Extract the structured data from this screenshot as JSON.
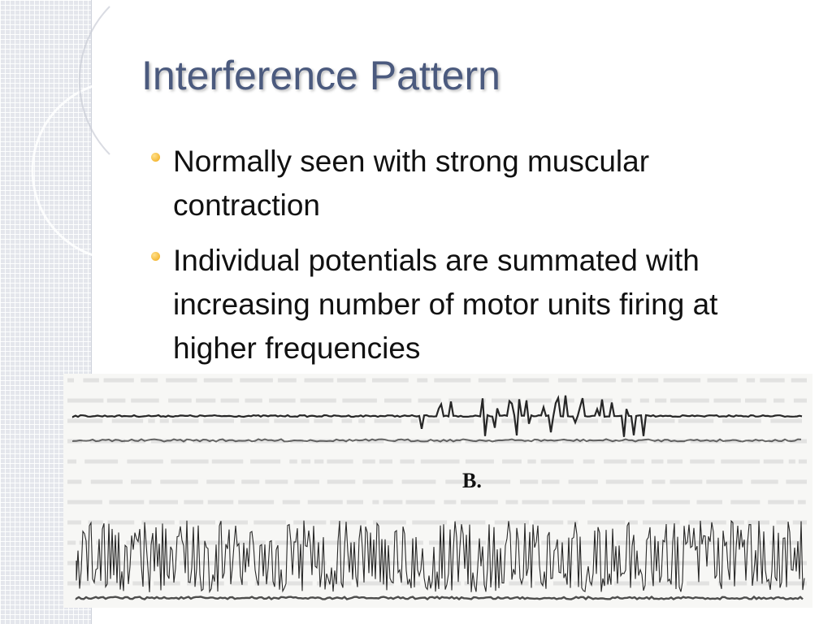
{
  "slide": {
    "title": "Interference Pattern",
    "bullets": [
      {
        "text": "Normally seen with strong muscular contraction"
      },
      {
        "text": "Individual potentials are summated with increasing number of motor units firing at higher frequencies"
      }
    ]
  },
  "figure": {
    "label": "B."
  },
  "colors": {
    "title": "#4b5a7e",
    "bullet": "#f0a814",
    "side_panel": "#e4e6ec"
  }
}
